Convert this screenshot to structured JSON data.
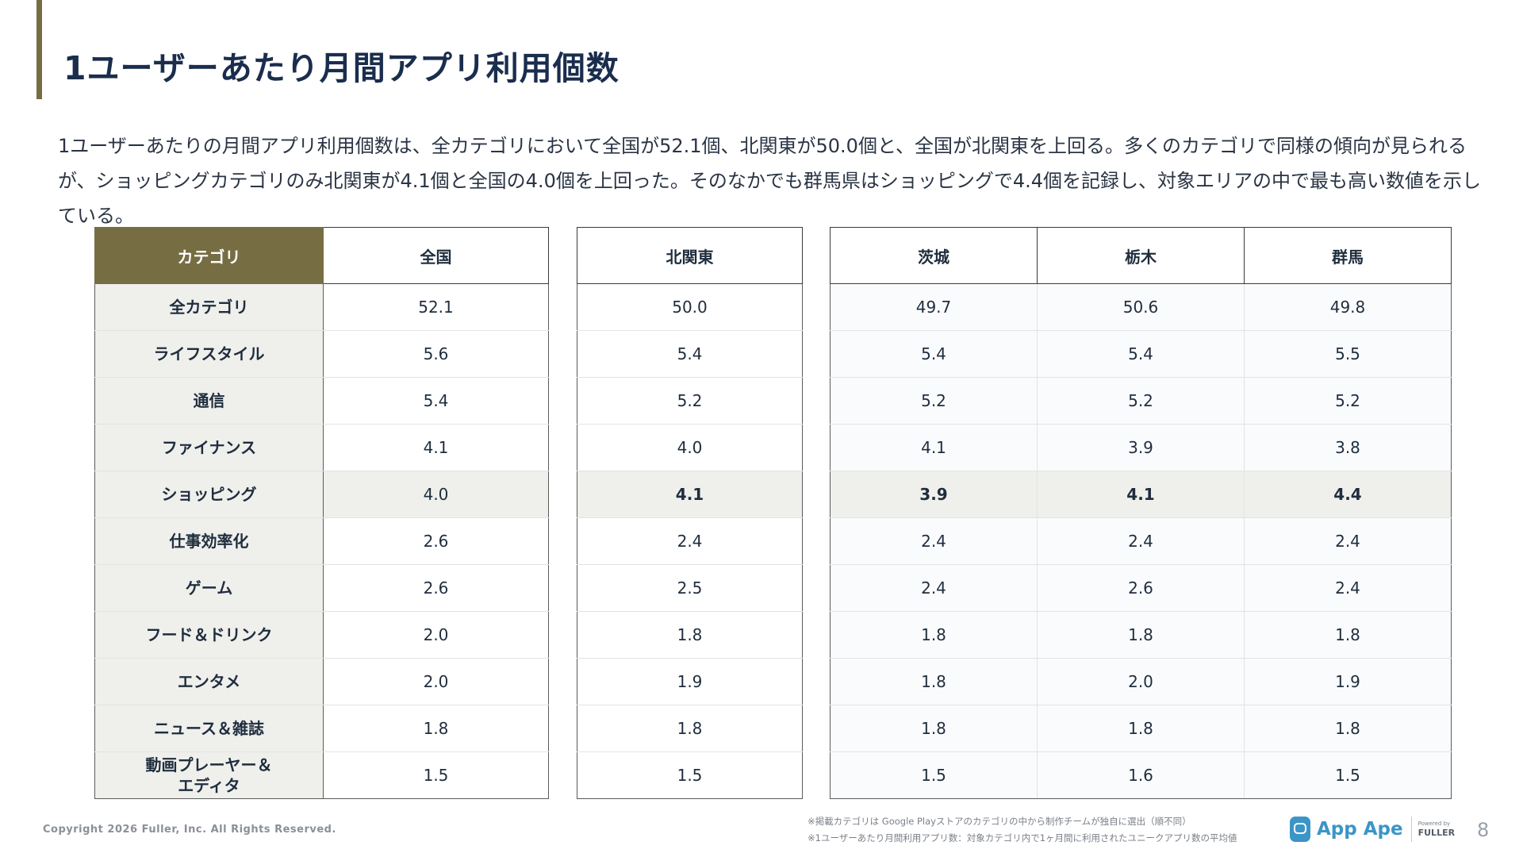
{
  "title": "1ユーザーあたり月間アプリ利用個数",
  "summary": "1ユーザーあたりの月間アプリ利用個数は、全カテゴリにおいて全国が52.1個、北関東が50.0個と、全国が北関東を上回る。多くのカテゴリで同様の傾向が見られるが、ショッピングカテゴリのみ北関東が4.1個と全国の4.0個を上回った。そのなかでも群馬県はショッピングで4.4個を記録し、対象エリアの中で最も高い数値を示している。",
  "table": {
    "headers": {
      "category": "カテゴリ",
      "national": "全国",
      "kitakanto": "北関東",
      "ibaraki": "茨城",
      "tochigi": "栃木",
      "gunma": "群馬"
    },
    "rows": [
      {
        "category": "全カテゴリ",
        "national": "52.1",
        "kitakanto": "50.0",
        "ibaraki": "49.7",
        "tochigi": "50.6",
        "gunma": "49.8"
      },
      {
        "category": "ライフスタイル",
        "national": "5.6",
        "kitakanto": "5.4",
        "ibaraki": "5.4",
        "tochigi": "5.4",
        "gunma": "5.5"
      },
      {
        "category": "通信",
        "national": "5.4",
        "kitakanto": "5.2",
        "ibaraki": "5.2",
        "tochigi": "5.2",
        "gunma": "5.2"
      },
      {
        "category": "ファイナンス",
        "national": "4.1",
        "kitakanto": "4.0",
        "ibaraki": "4.1",
        "tochigi": "3.9",
        "gunma": "3.8"
      },
      {
        "category": "ショッピング",
        "national": "4.0",
        "kitakanto": "4.1",
        "ibaraki": "3.9",
        "tochigi": "4.1",
        "gunma": "4.4"
      },
      {
        "category": "仕事効率化",
        "national": "2.6",
        "kitakanto": "2.4",
        "ibaraki": "2.4",
        "tochigi": "2.4",
        "gunma": "2.4"
      },
      {
        "category": "ゲーム",
        "national": "2.6",
        "kitakanto": "2.5",
        "ibaraki": "2.4",
        "tochigi": "2.6",
        "gunma": "2.4"
      },
      {
        "category": "フード＆ドリンク",
        "national": "2.0",
        "kitakanto": "1.8",
        "ibaraki": "1.8",
        "tochigi": "1.8",
        "gunma": "1.8"
      },
      {
        "category": "エンタメ",
        "national": "2.0",
        "kitakanto": "1.9",
        "ibaraki": "1.8",
        "tochigi": "2.0",
        "gunma": "1.9"
      },
      {
        "category": "ニュース＆雑誌",
        "national": "1.8",
        "kitakanto": "1.8",
        "ibaraki": "1.8",
        "tochigi": "1.8",
        "gunma": "1.8"
      },
      {
        "category_line1": "動画プレーヤー＆",
        "category_line2": "エディタ",
        "national": "1.5",
        "kitakanto": "1.5",
        "ibaraki": "1.5",
        "tochigi": "1.6",
        "gunma": "1.5"
      }
    ]
  },
  "footer": {
    "copyright": "Copyright 2026 Fuller, Inc. All Rights Reserved.",
    "note1": "※掲載カテゴリは Google Playストアのカテゴリの中から制作チームが独自に選出（順不同）",
    "note2": "※1ユーザーあたり月間利用アプリ数：対象カテゴリ内で1ヶ月間に利用されたユニークアプリ数の平均値",
    "logo_text": "App Ape",
    "logo_sub_small": "Powered by",
    "logo_sub_brand": "FULLER",
    "page_number": "8"
  },
  "colors": {
    "accent": "#776d43",
    "title": "#1a2d4d",
    "highlight_row": "#efefec",
    "logo": "#3b95c6"
  }
}
